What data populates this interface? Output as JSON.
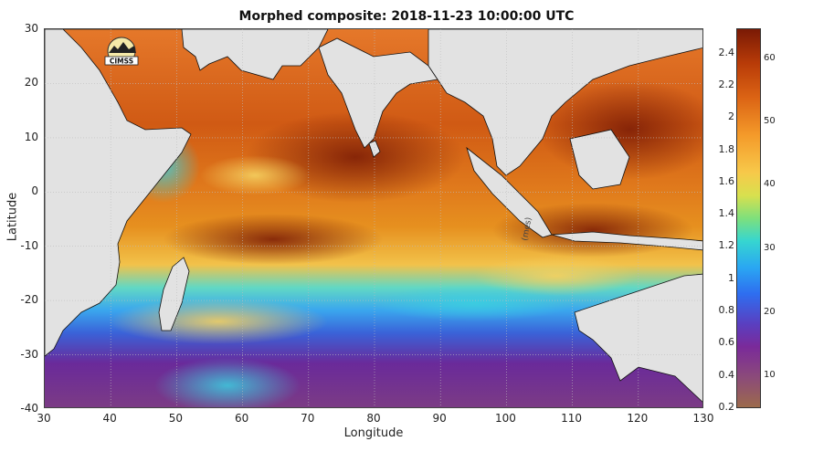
{
  "title": "Morphed composite: 2018-11-23 10:00:00 UTC",
  "xlabel": "Longitude",
  "ylabel": "Latitude",
  "x_ticks": [
    "30",
    "40",
    "50",
    "60",
    "70",
    "80",
    "90",
    "100",
    "110",
    "120",
    "130"
  ],
  "y_ticks": [
    "30",
    "20",
    "10",
    "0",
    "-10",
    "-20",
    "-30",
    "-40"
  ],
  "colorbar_left_ticks": [
    "2.4",
    "2.2",
    "2",
    "1.8",
    "1.6",
    "1.4",
    "1.2",
    "1",
    "0.8",
    "0.6",
    "0.4",
    "0.2"
  ],
  "colorbar_right_ticks": [
    "60",
    "50",
    "40",
    "30",
    "20",
    "10"
  ],
  "logo_text": "CIMSS",
  "embedded_label": "(mes)",
  "chart_data": {
    "type": "heatmap",
    "title": "Morphed composite: 2018-11-23 10:00:00 UTC",
    "xlabel": "Longitude",
    "ylabel": "Latitude",
    "xlim": [
      30,
      130
    ],
    "ylim": [
      -40,
      30
    ],
    "colorbar_left_range": [
      0.2,
      2.55
    ],
    "colorbar_right_ticks": [
      10,
      20,
      30,
      40,
      50,
      60
    ],
    "colors": {
      "land": "#e2e2e2",
      "high": "#8a2406",
      "mid_high": "#e0761c",
      "mid": "#f0b040",
      "mid_low": "#3fd0d0",
      "low": "#2a78e8",
      "lowest": "#6a2a9a"
    }
  }
}
